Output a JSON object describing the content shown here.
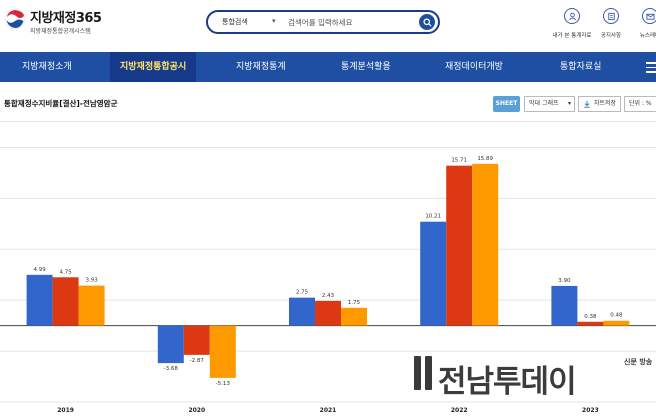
{
  "header": {
    "site_title": "지방재정365",
    "site_subtitle": "지방재정통합공개시스템",
    "search": {
      "type_label": "통합검색",
      "placeholder": "검색어를 입력하세요"
    },
    "utility_links": [
      {
        "label": "내가 본 통계자료",
        "icon": "user-icon"
      },
      {
        "label": "공지사항",
        "icon": "notice-icon"
      },
      {
        "label": "뉴스레터",
        "icon": "mail-icon"
      }
    ]
  },
  "nav": {
    "items": [
      {
        "label": "지방재정소개",
        "active": false
      },
      {
        "label": "지방재정통합공시",
        "active": true
      },
      {
        "label": "지방재정통계",
        "active": false
      },
      {
        "label": "통계분석활용",
        "active": false
      },
      {
        "label": "재정데이터개방",
        "active": false
      },
      {
        "label": "통합자료실",
        "active": false
      }
    ]
  },
  "toolbar": {
    "chart_title": "통합재정수지비율[결산]-전남영암군",
    "sheet_label": "SHEET",
    "chart_type_label": "막대 그래프",
    "save_label": "차트저장",
    "unit_label": "단위 : %"
  },
  "chart_data": {
    "type": "bar",
    "categories": [
      "2019",
      "2020",
      "2021",
      "2022",
      "2023"
    ],
    "series": [
      {
        "color": "#3366cc",
        "values": [
          4.99,
          -3.68,
          2.75,
          10.21,
          3.9
        ]
      },
      {
        "color": "#dc3912",
        "values": [
          4.75,
          -2.87,
          2.43,
          15.71,
          0.38
        ]
      },
      {
        "color": "#ff9900",
        "values": [
          3.93,
          -5.13,
          1.75,
          15.89,
          0.48
        ]
      }
    ],
    "data_labels": [
      [
        "4.99",
        "-3.68",
        "2.75",
        "10.21",
        "3.90"
      ],
      [
        "4.75",
        "-2.87",
        "2.43",
        "15.71",
        "0.38"
      ],
      [
        "3.93",
        "-5.13",
        "1.75",
        "15.89",
        "0.48"
      ]
    ],
    "ylim": [
      -7.5,
      20
    ],
    "grid": true,
    "legend": "none"
  },
  "watermark": {
    "text": "전남투데이",
    "side_text": "신문 방송"
  }
}
